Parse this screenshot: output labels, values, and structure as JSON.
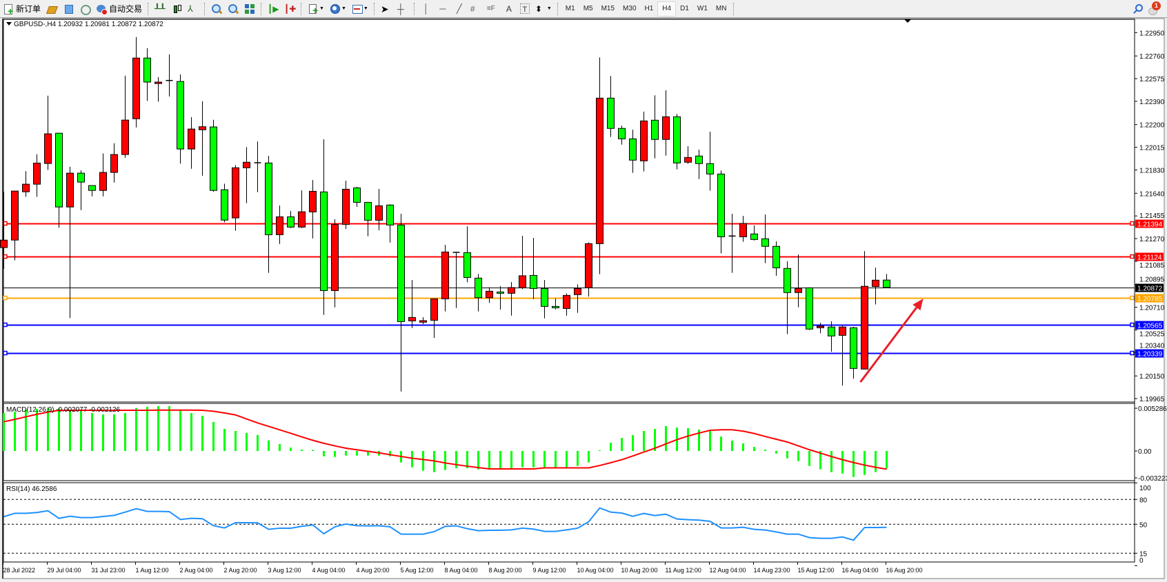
{
  "toolbar": {
    "new_order_label": "新订单",
    "auto_trading_label": "自动交易",
    "timeframes": [
      "M1",
      "M5",
      "M15",
      "M30",
      "H1",
      "H4",
      "D1",
      "W1",
      "MN"
    ],
    "active_timeframe": "H4",
    "notification_count": "1"
  },
  "chart": {
    "header": "GBPUSD-,H4  1.20932 1.20981 1.20872 1.20872",
    "colors": {
      "bull": "#ff0000",
      "bear": "#00ff00",
      "doji": "#000000",
      "macd_hist": "#00ff00",
      "macd_signal": "#ff0000",
      "rsi": "#1e90ff",
      "arrow": "#e8202a"
    },
    "price_axis": [
      "1.22950",
      "1.22760",
      "1.22575",
      "1.22390",
      "1.22200",
      "1.22015",
      "1.21830",
      "1.21640",
      "1.21455",
      "1.21270",
      "1.21085",
      "1.20895",
      "1.20710",
      "1.20525",
      "1.20340",
      "1.20150",
      "1.19965"
    ],
    "levels": [
      {
        "price": "1.21394",
        "color": "#ff0000",
        "text_color": "#ffffff"
      },
      {
        "price": "1.21124",
        "color": "#ff0000",
        "text_color": "#ffffff"
      },
      {
        "price": "1.20872",
        "color": "#000000",
        "text_color": "#ffffff"
      },
      {
        "price": "1.20785",
        "color": "#ffa500",
        "text_color": "#ffffff"
      },
      {
        "price": "1.20565",
        "color": "#0000ff",
        "text_color": "#ffffff"
      },
      {
        "price": "1.20339",
        "color": "#0000ff",
        "text_color": "#ffffff"
      }
    ],
    "time_labels": [
      "28 Jul 2022",
      "29 Jul 04:00",
      "31 Jul 23:00",
      "1 Aug 12:00",
      "2 Aug 04:00",
      "2 Aug 20:00",
      "3 Aug 12:00",
      "4 Aug 04:00",
      "4 Aug 20:00",
      "5 Aug 12:00",
      "8 Aug 04:00",
      "8 Aug 20:00",
      "9 Aug 12:00",
      "10 Aug 04:00",
      "10 Aug 20:00",
      "11 Aug 12:00",
      "12 Aug 04:00",
      "14 Aug 23:00",
      "15 Aug 12:00",
      "16 Aug 04:00",
      "16 Aug 20:00"
    ]
  },
  "macd": {
    "label": "MACD(12,26,9) -0.002077 -0.002126",
    "axis": [
      "0.005286",
      "0.00",
      "-0.003223"
    ]
  },
  "rsi": {
    "label": "RSI(14) 46.2586",
    "axis": [
      "100",
      "80",
      "50",
      "15",
      "0"
    ],
    "levels": [
      80,
      50,
      15
    ]
  },
  "chart_data": {
    "type": "candlestick",
    "symbol": "GBPUSD-",
    "timeframe": "H4",
    "ylim": [
      1.19965,
      1.2295
    ],
    "ohlc": [
      [
        1.21197,
        1.21652,
        1.21024,
        1.21258
      ],
      [
        1.21258,
        1.21661,
        1.21093,
        1.21658
      ],
      [
        1.21652,
        1.21821,
        1.21611,
        1.21714
      ],
      [
        1.21714,
        1.21958,
        1.21611,
        1.21886
      ],
      [
        1.21883,
        1.22436,
        1.2183,
        1.22125
      ],
      [
        1.2213,
        1.2213,
        1.21358,
        1.21528
      ],
      [
        1.21528,
        1.21857,
        1.20621,
        1.21804
      ],
      [
        1.21804,
        1.21827,
        1.21502,
        1.21731
      ],
      [
        1.21703,
        1.21703,
        1.21615,
        1.21663
      ],
      [
        1.21663,
        1.21965,
        1.21615,
        1.2181
      ],
      [
        1.2181,
        1.22048,
        1.21727,
        1.21956
      ],
      [
        1.21956,
        1.22599,
        1.2193,
        1.22237
      ],
      [
        1.22248,
        1.22914,
        1.22177,
        1.22743
      ],
      [
        1.22743,
        1.22824,
        1.22393,
        1.22547
      ],
      [
        1.22535,
        1.22588,
        1.22387,
        1.22547
      ],
      [
        1.2256,
        1.22773,
        1.2243,
        1.2256
      ],
      [
        1.22552,
        1.2261,
        1.21881,
        1.22001
      ],
      [
        1.22001,
        1.22261,
        1.2184,
        1.22164
      ],
      [
        1.22158,
        1.22391,
        1.21783,
        1.22183
      ],
      [
        1.22181,
        1.22239,
        1.21652,
        1.21663
      ],
      [
        1.21669,
        1.21718,
        1.21403,
        1.21421
      ],
      [
        1.21439,
        1.2187,
        1.21334,
        1.21848
      ],
      [
        1.21848,
        1.22016,
        1.21559,
        1.21893
      ],
      [
        1.21889,
        1.22063,
        1.21649,
        1.21889
      ],
      [
        1.21887,
        1.21945,
        1.20991,
        1.21302
      ],
      [
        1.21302,
        1.2154,
        1.21227,
        1.21448
      ],
      [
        1.21448,
        1.21495,
        1.21356,
        1.21364
      ],
      [
        1.21364,
        1.21664,
        1.21356,
        1.21489
      ],
      [
        1.21488,
        1.21748,
        1.21272,
        1.21656
      ],
      [
        1.21651,
        1.2208,
        1.20648,
        1.20846
      ],
      [
        1.20846,
        1.21428,
        1.20709,
        1.21386
      ],
      [
        1.21386,
        1.21743,
        1.21349,
        1.21673
      ],
      [
        1.21684,
        1.21692,
        1.21529,
        1.21566
      ],
      [
        1.21566,
        1.21566,
        1.21289,
        1.2142
      ],
      [
        1.2142,
        1.21675,
        1.21338,
        1.21538
      ],
      [
        1.21544,
        1.21551,
        1.21238,
        1.21381
      ],
      [
        1.21381,
        1.21473,
        1.20023,
        1.20593
      ],
      [
        1.20599,
        1.20933,
        1.20541,
        1.20627
      ],
      [
        1.20588,
        1.20629,
        1.20573,
        1.20601
      ],
      [
        1.20604,
        1.20779,
        1.2046,
        1.20779
      ],
      [
        1.20779,
        1.21219,
        1.20676,
        1.21161
      ],
      [
        1.21158,
        1.21158,
        1.20704,
        1.21158
      ],
      [
        1.21156,
        1.2137,
        1.20914,
        1.20953
      ],
      [
        1.20948,
        1.20982,
        1.20676,
        1.20788
      ],
      [
        1.20788,
        1.20873,
        1.20745,
        1.20841
      ],
      [
        1.20835,
        1.20882,
        1.20691,
        1.20824
      ],
      [
        1.20824,
        1.20916,
        1.20642,
        1.20871
      ],
      [
        1.20869,
        1.21293,
        1.20858,
        1.20967
      ],
      [
        1.2097,
        1.21276,
        1.20777,
        1.20863
      ],
      [
        1.20863,
        1.20933,
        1.2062,
        1.20717
      ],
      [
        1.20717,
        1.20783,
        1.20693,
        1.20706
      ],
      [
        1.207,
        1.20824,
        1.20642,
        1.20807
      ],
      [
        1.20813,
        1.20897,
        1.20665,
        1.20863
      ],
      [
        1.20869,
        1.2124,
        1.20798,
        1.21229
      ],
      [
        1.21229,
        1.22748,
        1.2098,
        1.22416
      ],
      [
        1.22416,
        1.22596,
        1.22099,
        1.22169
      ],
      [
        1.22169,
        1.22191,
        1.22037,
        1.22084
      ],
      [
        1.22084,
        1.22159,
        1.21807,
        1.2191
      ],
      [
        1.21904,
        1.22306,
        1.21818,
        1.2223
      ],
      [
        1.22236,
        1.22439,
        1.21925,
        1.22079
      ],
      [
        1.22079,
        1.2248,
        1.21947,
        1.22264
      ],
      [
        1.22264,
        1.22287,
        1.21835,
        1.21887
      ],
      [
        1.21893,
        1.22024,
        1.2188,
        1.21932
      ],
      [
        1.21944,
        1.21996,
        1.21756,
        1.21882
      ],
      [
        1.21882,
        1.22142,
        1.21661,
        1.21797
      ],
      [
        1.21797,
        1.21826,
        1.21149,
        1.21285
      ],
      [
        1.21291,
        1.21473,
        1.20991,
        1.21291
      ],
      [
        1.21285,
        1.21456,
        1.21244,
        1.21394
      ],
      [
        1.21308,
        1.21377,
        1.21255,
        1.21263
      ],
      [
        1.21269,
        1.21467,
        1.2107,
        1.21207
      ],
      [
        1.21207,
        1.21248,
        1.20967,
        1.21032
      ],
      [
        1.21027,
        1.21085,
        1.20491,
        1.2083
      ],
      [
        1.2083,
        1.2114,
        1.2071,
        1.20864
      ],
      [
        1.20869,
        1.20873,
        1.20525,
        1.20532
      ],
      [
        1.20543,
        1.20583,
        1.20498,
        1.20556
      ],
      [
        1.20549,
        1.20596,
        1.20348,
        1.20476
      ],
      [
        1.20481,
        1.20558,
        1.20071,
        1.20549
      ],
      [
        1.20543,
        1.20551,
        1.20127,
        1.20211
      ],
      [
        1.20206,
        1.21168,
        1.20206,
        1.20881
      ],
      [
        1.20879,
        1.21033,
        1.20733,
        1.20931
      ],
      [
        1.20932,
        1.20981,
        1.20872,
        1.20872
      ]
    ],
    "macd_hist": [
      0.00444,
      0.0046,
      0.00482,
      0.00492,
      0.00508,
      0.00498,
      0.00471,
      0.00465,
      0.00444,
      0.00428,
      0.00428,
      0.00444,
      0.00503,
      0.00516,
      0.00525,
      0.00525,
      0.00471,
      0.00444,
      0.00412,
      0.00339,
      0.00258,
      0.00234,
      0.0021,
      0.00186,
      0.00124,
      0.00081,
      0.0004,
      0.00016,
      0.00013,
      -0.00062,
      -0.0007,
      -0.00054,
      -0.00054,
      -0.00054,
      -0.00054,
      -0.00062,
      -0.00134,
      -0.00191,
      -0.00231,
      -0.00247,
      -0.00223,
      -0.00202,
      -0.00202,
      -0.00215,
      -0.00202,
      -0.00202,
      -0.00202,
      -0.00191,
      -0.00191,
      -0.00191,
      -0.00191,
      -0.00191,
      -0.00175,
      -0.00134,
      8e-05,
      0.00097,
      0.00153,
      0.00186,
      0.00234,
      0.00258,
      0.00291,
      0.00274,
      0.00266,
      0.0025,
      0.00234,
      0.00169,
      0.00121,
      0.00089,
      0.00048,
      0.00016,
      -0.0003,
      -0.00086,
      -0.00118,
      -0.00175,
      -0.00215,
      -0.00247,
      -0.00264,
      -0.00304,
      -0.0028,
      -0.00247,
      -0.002077
    ],
    "macd_signal": [
      0.00342,
      0.0037,
      0.004,
      0.0043,
      0.00455,
      0.00476,
      0.00476,
      0.00476,
      0.00476,
      0.00476,
      0.00476,
      0.00476,
      0.00476,
      0.00476,
      0.00478,
      0.00478,
      0.00478,
      0.00478,
      0.00476,
      0.00465,
      0.00445,
      0.00422,
      0.00375,
      0.00328,
      0.00288,
      0.00248,
      0.00207,
      0.00165,
      0.00125,
      0.0009,
      0.0006,
      0.00032,
      0.00014,
      -4e-05,
      -0.00022,
      -0.00043,
      -0.00064,
      -0.00085,
      -0.001,
      -0.00116,
      -0.0014,
      -0.0016,
      -0.00178,
      -0.00195,
      -0.0021,
      -0.0021,
      -0.0021,
      -0.0021,
      -0.0021,
      -0.00198,
      -0.00198,
      -0.00198,
      -0.00198,
      -0.00198,
      -0.0017,
      -0.00137,
      -0.00102,
      -0.00058,
      -0.00013,
      0.00032,
      0.00083,
      0.00133,
      0.00175,
      0.0021,
      0.00242,
      0.00248,
      0.00248,
      0.00232,
      0.00205,
      0.0017,
      0.00137,
      0.00105,
      0.0006,
      0.00015,
      -0.00025,
      -0.00065,
      -0.00102,
      -0.00135,
      -0.00165,
      -0.00191,
      -0.002126
    ],
    "rsi": [
      59.2,
      63.3,
      63.3,
      64.2,
      66.4,
      57.2,
      59.7,
      58.1,
      58.1,
      59.4,
      60.8,
      64.7,
      68.9,
      65.6,
      65.6,
      65.3,
      55.8,
      57.2,
      56.7,
      48.3,
      45.6,
      51.9,
      51.9,
      51.7,
      43.9,
      45.3,
      45.3,
      47.5,
      49.2,
      38.6,
      46.9,
      50.3,
      48.3,
      48.1,
      48.3,
      46.9,
      38.1,
      38.1,
      38.1,
      41.1,
      47.5,
      48.1,
      44.7,
      42.2,
      42.8,
      42.8,
      43.3,
      45.3,
      44.2,
      41.4,
      41.4,
      43.3,
      45.3,
      53.1,
      69.7,
      64.7,
      63.6,
      59.7,
      63.1,
      60.6,
      62.2,
      56.4,
      55.6,
      55.0,
      53.6,
      45.6,
      45.6,
      46.4,
      43.9,
      43.1,
      40.8,
      38.1,
      38.1,
      33.9,
      33.1,
      33.1,
      34.7,
      30.8,
      46.1,
      46.1,
      46.2586
    ],
    "annotation": {
      "type": "arrow",
      "from": {
        "candle": 77,
        "price": 1.201
      },
      "to": {
        "candle": 83,
        "price": 1.2078
      },
      "color": "#e8202a"
    }
  }
}
